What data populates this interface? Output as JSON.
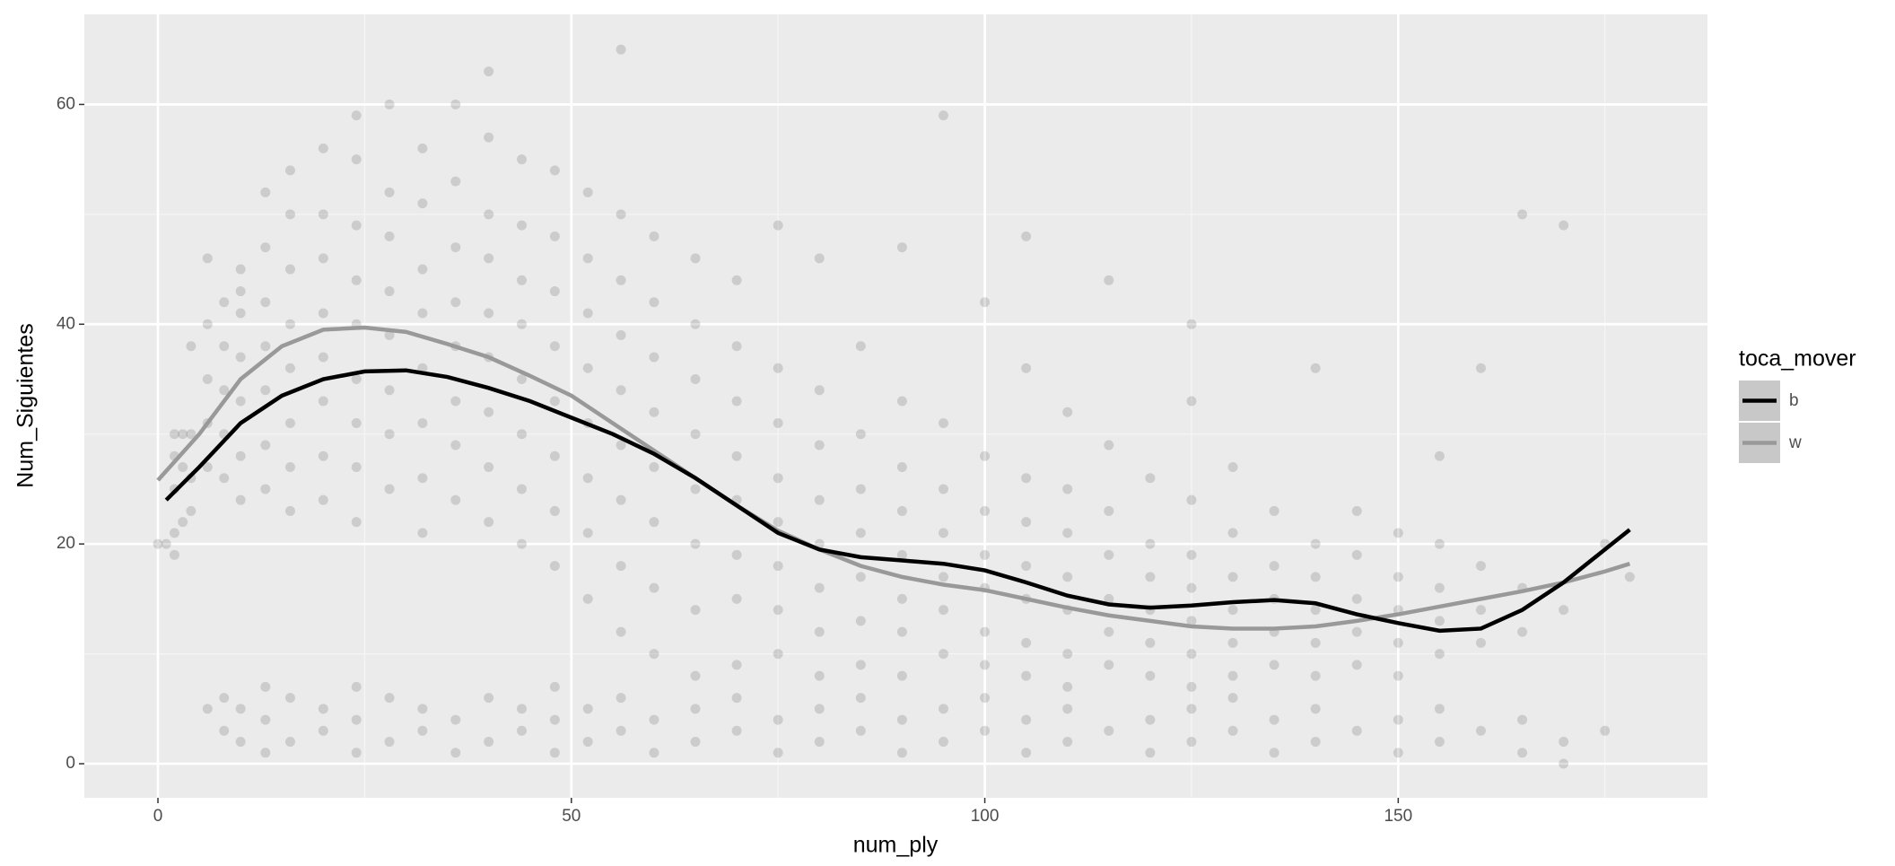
{
  "chart_data": {
    "type": "scatter",
    "x_label": "num_ply",
    "y_label": "Num_Siguientes",
    "xlim": [
      -8.9,
      187.4
    ],
    "ylim": [
      -3.1,
      68.2
    ],
    "xticks": [
      0,
      50,
      100,
      150
    ],
    "yticks": [
      0,
      20,
      40,
      60
    ],
    "x_minor_ticks": [
      25,
      75,
      125,
      175
    ],
    "y_minor_ticks": [
      10,
      30,
      50
    ],
    "grid": true,
    "point_color": "#000000",
    "point_opacity": 0.13,
    "points": [
      [
        0,
        20
      ],
      [
        1,
        20
      ],
      [
        2,
        19
      ],
      [
        2,
        21
      ],
      [
        2,
        25
      ],
      [
        2,
        28
      ],
      [
        2,
        30
      ],
      [
        3,
        22
      ],
      [
        3,
        27
      ],
      [
        3,
        30
      ],
      [
        4,
        23
      ],
      [
        4,
        26
      ],
      [
        4,
        30
      ],
      [
        4,
        38
      ],
      [
        6,
        27
      ],
      [
        6,
        31
      ],
      [
        6,
        35
      ],
      [
        6,
        40
      ],
      [
        6,
        46
      ],
      [
        6,
        5
      ],
      [
        8,
        26
      ],
      [
        8,
        30
      ],
      [
        8,
        34
      ],
      [
        8,
        38
      ],
      [
        8,
        42
      ],
      [
        8,
        3
      ],
      [
        8,
        6
      ],
      [
        10,
        24
      ],
      [
        10,
        28
      ],
      [
        10,
        33
      ],
      [
        10,
        37
      ],
      [
        10,
        41
      ],
      [
        10,
        45
      ],
      [
        10,
        43
      ],
      [
        10,
        2
      ],
      [
        10,
        5
      ],
      [
        13,
        25
      ],
      [
        13,
        29
      ],
      [
        13,
        34
      ],
      [
        13,
        38
      ],
      [
        13,
        42
      ],
      [
        13,
        47
      ],
      [
        13,
        52
      ],
      [
        13,
        1
      ],
      [
        13,
        4
      ],
      [
        13,
        7
      ],
      [
        16,
        23
      ],
      [
        16,
        27
      ],
      [
        16,
        31
      ],
      [
        16,
        36
      ],
      [
        16,
        40
      ],
      [
        16,
        45
      ],
      [
        16,
        50
      ],
      [
        16,
        54
      ],
      [
        16,
        2
      ],
      [
        16,
        6
      ],
      [
        20,
        24
      ],
      [
        20,
        28
      ],
      [
        20,
        33
      ],
      [
        20,
        37
      ],
      [
        20,
        41
      ],
      [
        20,
        46
      ],
      [
        20,
        50
      ],
      [
        20,
        56
      ],
      [
        20,
        3
      ],
      [
        20,
        5
      ],
      [
        24,
        22
      ],
      [
        24,
        27
      ],
      [
        24,
        31
      ],
      [
        24,
        35
      ],
      [
        24,
        40
      ],
      [
        24,
        44
      ],
      [
        24,
        49
      ],
      [
        24,
        55
      ],
      [
        24,
        59
      ],
      [
        24,
        1
      ],
      [
        24,
        4
      ],
      [
        24,
        7
      ],
      [
        28,
        25
      ],
      [
        28,
        30
      ],
      [
        28,
        34
      ],
      [
        28,
        39
      ],
      [
        28,
        43
      ],
      [
        28,
        48
      ],
      [
        28,
        52
      ],
      [
        28,
        60
      ],
      [
        28,
        2
      ],
      [
        28,
        6
      ],
      [
        32,
        21
      ],
      [
        32,
        26
      ],
      [
        32,
        31
      ],
      [
        32,
        36
      ],
      [
        32,
        41
      ],
      [
        32,
        45
      ],
      [
        32,
        51
      ],
      [
        32,
        56
      ],
      [
        32,
        3
      ],
      [
        32,
        5
      ],
      [
        36,
        24
      ],
      [
        36,
        29
      ],
      [
        36,
        33
      ],
      [
        36,
        38
      ],
      [
        36,
        42
      ],
      [
        36,
        47
      ],
      [
        36,
        53
      ],
      [
        36,
        60
      ],
      [
        36,
        1
      ],
      [
        36,
        4
      ],
      [
        40,
        22
      ],
      [
        40,
        27
      ],
      [
        40,
        32
      ],
      [
        40,
        37
      ],
      [
        40,
        41
      ],
      [
        40,
        46
      ],
      [
        40,
        50
      ],
      [
        40,
        57
      ],
      [
        40,
        63
      ],
      [
        40,
        2
      ],
      [
        40,
        6
      ],
      [
        44,
        20
      ],
      [
        44,
        25
      ],
      [
        44,
        30
      ],
      [
        44,
        35
      ],
      [
        44,
        40
      ],
      [
        44,
        44
      ],
      [
        44,
        49
      ],
      [
        44,
        55
      ],
      [
        44,
        3
      ],
      [
        44,
        5
      ],
      [
        48,
        18
      ],
      [
        48,
        23
      ],
      [
        48,
        28
      ],
      [
        48,
        33
      ],
      [
        48,
        38
      ],
      [
        48,
        43
      ],
      [
        48,
        48
      ],
      [
        48,
        54
      ],
      [
        48,
        1
      ],
      [
        48,
        4
      ],
      [
        48,
        7
      ],
      [
        52,
        15
      ],
      [
        52,
        21
      ],
      [
        52,
        26
      ],
      [
        52,
        31
      ],
      [
        52,
        36
      ],
      [
        52,
        41
      ],
      [
        52,
        46
      ],
      [
        52,
        52
      ],
      [
        52,
        2
      ],
      [
        52,
        5
      ],
      [
        56,
        12
      ],
      [
        56,
        18
      ],
      [
        56,
        24
      ],
      [
        56,
        29
      ],
      [
        56,
        34
      ],
      [
        56,
        39
      ],
      [
        56,
        44
      ],
      [
        56,
        50
      ],
      [
        56,
        65
      ],
      [
        56,
        3
      ],
      [
        56,
        6
      ],
      [
        60,
        10
      ],
      [
        60,
        16
      ],
      [
        60,
        22
      ],
      [
        60,
        27
      ],
      [
        60,
        32
      ],
      [
        60,
        37
      ],
      [
        60,
        42
      ],
      [
        60,
        48
      ],
      [
        60,
        1
      ],
      [
        60,
        4
      ],
      [
        65,
        8
      ],
      [
        65,
        14
      ],
      [
        65,
        20
      ],
      [
        65,
        25
      ],
      [
        65,
        30
      ],
      [
        65,
        35
      ],
      [
        65,
        40
      ],
      [
        65,
        46
      ],
      [
        65,
        2
      ],
      [
        65,
        5
      ],
      [
        70,
        9
      ],
      [
        70,
        15
      ],
      [
        70,
        19
      ],
      [
        70,
        24
      ],
      [
        70,
        28
      ],
      [
        70,
        33
      ],
      [
        70,
        38
      ],
      [
        70,
        44
      ],
      [
        70,
        3
      ],
      [
        70,
        6
      ],
      [
        75,
        10
      ],
      [
        75,
        14
      ],
      [
        75,
        18
      ],
      [
        75,
        22
      ],
      [
        75,
        26
      ],
      [
        75,
        31
      ],
      [
        75,
        36
      ],
      [
        75,
        49
      ],
      [
        75,
        1
      ],
      [
        75,
        4
      ],
      [
        80,
        8
      ],
      [
        80,
        12
      ],
      [
        80,
        16
      ],
      [
        80,
        20
      ],
      [
        80,
        24
      ],
      [
        80,
        29
      ],
      [
        80,
        34
      ],
      [
        80,
        46
      ],
      [
        80,
        2
      ],
      [
        80,
        5
      ],
      [
        85,
        9
      ],
      [
        85,
        13
      ],
      [
        85,
        17
      ],
      [
        85,
        21
      ],
      [
        85,
        25
      ],
      [
        85,
        30
      ],
      [
        85,
        38
      ],
      [
        85,
        3
      ],
      [
        85,
        6
      ],
      [
        90,
        8
      ],
      [
        90,
        12
      ],
      [
        90,
        15
      ],
      [
        90,
        19
      ],
      [
        90,
        23
      ],
      [
        90,
        27
      ],
      [
        90,
        33
      ],
      [
        90,
        47
      ],
      [
        90,
        1
      ],
      [
        90,
        4
      ],
      [
        95,
        10
      ],
      [
        95,
        14
      ],
      [
        95,
        17
      ],
      [
        95,
        21
      ],
      [
        95,
        25
      ],
      [
        95,
        31
      ],
      [
        95,
        59
      ],
      [
        95,
        2
      ],
      [
        95,
        5
      ],
      [
        100,
        9
      ],
      [
        100,
        12
      ],
      [
        100,
        16
      ],
      [
        100,
        19
      ],
      [
        100,
        23
      ],
      [
        100,
        28
      ],
      [
        100,
        42
      ],
      [
        100,
        3
      ],
      [
        100,
        6
      ],
      [
        105,
        8
      ],
      [
        105,
        11
      ],
      [
        105,
        15
      ],
      [
        105,
        18
      ],
      [
        105,
        22
      ],
      [
        105,
        26
      ],
      [
        105,
        36
      ],
      [
        105,
        48
      ],
      [
        105,
        1
      ],
      [
        105,
        4
      ],
      [
        110,
        7
      ],
      [
        110,
        10
      ],
      [
        110,
        14
      ],
      [
        110,
        17
      ],
      [
        110,
        21
      ],
      [
        110,
        25
      ],
      [
        110,
        32
      ],
      [
        110,
        2
      ],
      [
        110,
        5
      ],
      [
        115,
        9
      ],
      [
        115,
        12
      ],
      [
        115,
        15
      ],
      [
        115,
        19
      ],
      [
        115,
        23
      ],
      [
        115,
        29
      ],
      [
        115,
        44
      ],
      [
        115,
        3
      ],
      [
        120,
        8
      ],
      [
        120,
        11
      ],
      [
        120,
        14
      ],
      [
        120,
        17
      ],
      [
        120,
        20
      ],
      [
        120,
        26
      ],
      [
        120,
        1
      ],
      [
        120,
        4
      ],
      [
        125,
        7
      ],
      [
        125,
        10
      ],
      [
        125,
        13
      ],
      [
        125,
        16
      ],
      [
        125,
        19
      ],
      [
        125,
        24
      ],
      [
        125,
        33
      ],
      [
        125,
        40
      ],
      [
        125,
        2
      ],
      [
        125,
        5
      ],
      [
        130,
        8
      ],
      [
        130,
        11
      ],
      [
        130,
        14
      ],
      [
        130,
        17
      ],
      [
        130,
        21
      ],
      [
        130,
        27
      ],
      [
        130,
        3
      ],
      [
        130,
        6
      ],
      [
        135,
        9
      ],
      [
        135,
        12
      ],
      [
        135,
        15
      ],
      [
        135,
        18
      ],
      [
        135,
        23
      ],
      [
        135,
        1
      ],
      [
        135,
        4
      ],
      [
        140,
        8
      ],
      [
        140,
        11
      ],
      [
        140,
        14
      ],
      [
        140,
        17
      ],
      [
        140,
        20
      ],
      [
        140,
        36
      ],
      [
        140,
        2
      ],
      [
        140,
        5
      ],
      [
        145,
        9
      ],
      [
        145,
        12
      ],
      [
        145,
        15
      ],
      [
        145,
        19
      ],
      [
        145,
        23
      ],
      [
        145,
        3
      ],
      [
        150,
        8
      ],
      [
        150,
        11
      ],
      [
        150,
        14
      ],
      [
        150,
        17
      ],
      [
        150,
        21
      ],
      [
        150,
        1
      ],
      [
        150,
        4
      ],
      [
        155,
        10
      ],
      [
        155,
        13
      ],
      [
        155,
        16
      ],
      [
        155,
        20
      ],
      [
        155,
        28
      ],
      [
        155,
        2
      ],
      [
        155,
        5
      ],
      [
        160,
        11
      ],
      [
        160,
        14
      ],
      [
        160,
        18
      ],
      [
        160,
        36
      ],
      [
        160,
        3
      ],
      [
        165,
        12
      ],
      [
        165,
        16
      ],
      [
        165,
        50
      ],
      [
        165,
        1
      ],
      [
        165,
        4
      ],
      [
        170,
        14
      ],
      [
        170,
        49
      ],
      [
        170,
        2
      ],
      [
        170,
        0
      ],
      [
        175,
        20
      ],
      [
        175,
        3
      ],
      [
        178,
        17
      ]
    ],
    "legend_title": "toca_mover",
    "series": [
      {
        "name": "b",
        "color": "#000000",
        "x": [
          1,
          5,
          10,
          15,
          20,
          25,
          30,
          35,
          40,
          45,
          50,
          55,
          60,
          65,
          70,
          75,
          80,
          85,
          90,
          95,
          100,
          105,
          110,
          115,
          120,
          125,
          130,
          135,
          140,
          145,
          150,
          155,
          160,
          165,
          170,
          175,
          178
        ],
        "values": [
          24,
          27,
          31,
          33.5,
          35,
          35.7,
          35.8,
          35.2,
          34.2,
          33,
          31.5,
          30,
          28.2,
          26,
          23.5,
          21,
          19.5,
          18.8,
          18.5,
          18.2,
          17.6,
          16.5,
          15.3,
          14.5,
          14.2,
          14.4,
          14.7,
          14.9,
          14.6,
          13.6,
          12.8,
          12.1,
          12.3,
          14,
          16.5,
          19.5,
          21.3
        ]
      },
      {
        "name": "w",
        "color": "#999999",
        "x": [
          0,
          5,
          10,
          15,
          20,
          25,
          30,
          35,
          40,
          45,
          50,
          55,
          60,
          65,
          70,
          75,
          80,
          85,
          90,
          95,
          100,
          105,
          110,
          115,
          120,
          125,
          130,
          135,
          140,
          145,
          150,
          155,
          160,
          165,
          170,
          175,
          178
        ],
        "values": [
          25.8,
          30,
          35,
          38,
          39.5,
          39.7,
          39.3,
          38.2,
          37,
          35.3,
          33.5,
          31,
          28.5,
          26,
          23.5,
          21.2,
          19.5,
          18,
          17,
          16.3,
          15.8,
          15,
          14.2,
          13.5,
          13,
          12.5,
          12.3,
          12.3,
          12.5,
          13,
          13.6,
          14.3,
          15,
          15.7,
          16.5,
          17.5,
          18.2
        ]
      }
    ]
  }
}
